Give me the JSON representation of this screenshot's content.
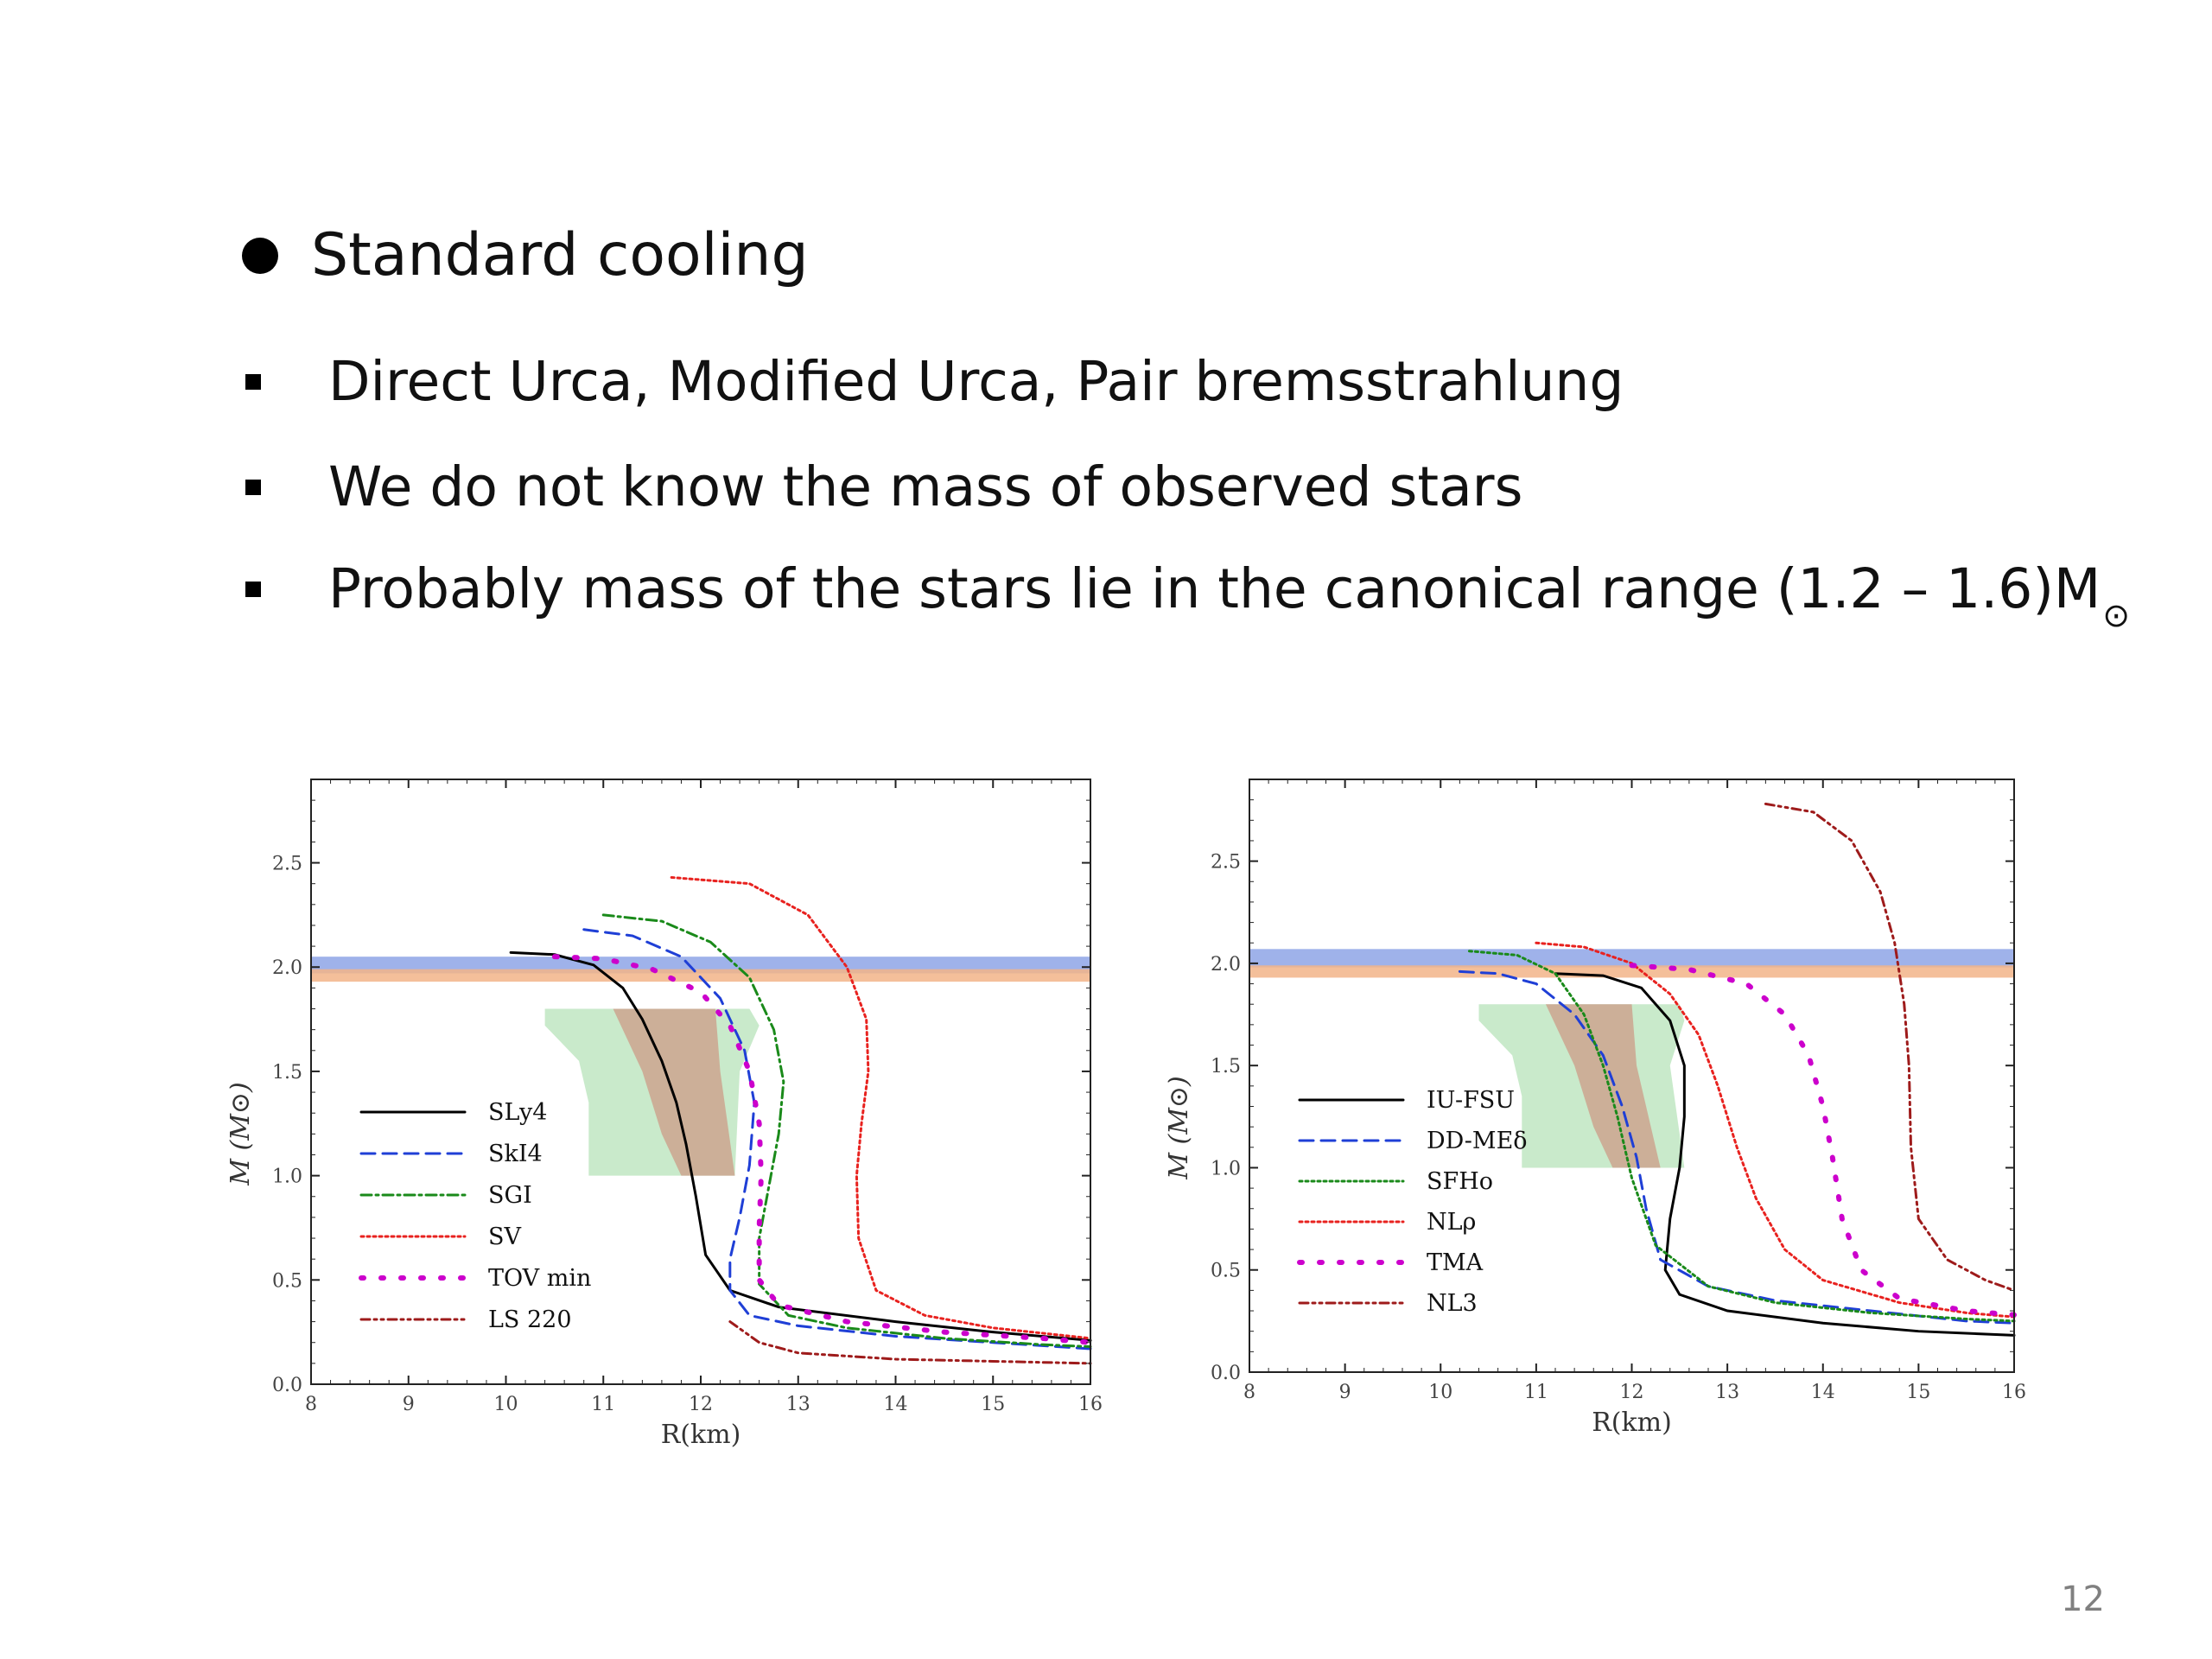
{
  "slide": {
    "heading": "Standard cooling",
    "bullets": [
      "Direct Urca, Modified Urca, Pair bremsstrahlung",
      "We do not know the mass of observed stars",
      "Probably mass of the stars lie in the canonical range (1.2 – 1.6)M"
    ],
    "sun_symbol": "⊙",
    "page_number": "12"
  },
  "colors": {
    "band_blue": "#8ea4e6",
    "band_orange": "#f2b488",
    "region_green": "#bfe6c2",
    "region_brown": "#cda48f"
  },
  "chart_data": [
    {
      "type": "line",
      "xlabel": "R(km)",
      "ylabel": "M (M⊙)",
      "xlim": [
        8,
        16
      ],
      "ylim": [
        0,
        2.9
      ],
      "xticks": [
        8,
        9,
        10,
        11,
        12,
        13,
        14,
        15,
        16
      ],
      "yticks": [
        0.0,
        0.5,
        1.0,
        1.5,
        2.0,
        2.5
      ],
      "xtick_labels": [
        "8",
        "9",
        "10",
        "11",
        "12",
        "13",
        "14",
        "15",
        "16"
      ],
      "ytick_labels": [
        "0.0",
        "0.5",
        "1.0",
        "1.5",
        "2.0",
        "2.5"
      ],
      "legend_position": "left",
      "bands": [
        {
          "y": [
            1.97,
            2.05
          ],
          "color": "blue"
        },
        {
          "y": [
            1.93,
            1.99
          ],
          "color": "orange"
        }
      ],
      "regions": [
        {
          "color": "green",
          "points": [
            [
              10.4,
              1.8
            ],
            [
              11.0,
              1.8
            ],
            [
              11.5,
              1.8
            ],
            [
              12.5,
              1.8
            ],
            [
              12.6,
              1.72
            ],
            [
              12.4,
              1.5
            ],
            [
              12.35,
              1.0
            ],
            [
              10.85,
              1.0
            ],
            [
              10.85,
              1.35
            ],
            [
              10.75,
              1.55
            ],
            [
              10.4,
              1.72
            ]
          ]
        },
        {
          "color": "brown",
          "points": [
            [
              11.1,
              1.8
            ],
            [
              12.15,
              1.8
            ],
            [
              12.2,
              1.5
            ],
            [
              12.35,
              1.0
            ],
            [
              11.8,
              1.0
            ],
            [
              11.6,
              1.2
            ],
            [
              11.4,
              1.5
            ]
          ]
        }
      ],
      "series": [
        {
          "name": "SLy4",
          "style": "solid",
          "color": "#000000",
          "x": [
            10.05,
            10.5,
            10.9,
            11.2,
            11.4,
            11.6,
            11.75,
            11.85,
            11.95,
            12.05,
            12.3,
            12.8,
            14.0,
            15.0,
            16.0
          ],
          "y": [
            2.07,
            2.06,
            2.01,
            1.9,
            1.75,
            1.55,
            1.35,
            1.15,
            0.9,
            0.62,
            0.45,
            0.37,
            0.3,
            0.25,
            0.21
          ]
        },
        {
          "name": "SkI4",
          "style": "dashed",
          "color": "#1f3fd6",
          "x": [
            10.8,
            11.3,
            11.8,
            12.2,
            12.45,
            12.55,
            12.5,
            12.4,
            12.3,
            12.3,
            12.5,
            13.0,
            14.0,
            15.0,
            16.0
          ],
          "y": [
            2.18,
            2.15,
            2.05,
            1.85,
            1.6,
            1.35,
            1.05,
            0.8,
            0.6,
            0.45,
            0.33,
            0.28,
            0.23,
            0.2,
            0.17
          ]
        },
        {
          "name": "SGI",
          "style": "dashdot",
          "color": "#1a8a1a",
          "x": [
            11.0,
            11.6,
            12.1,
            12.5,
            12.75,
            12.85,
            12.8,
            12.7,
            12.6,
            12.6,
            12.9,
            13.5,
            14.5,
            15.5,
            16.0
          ],
          "y": [
            2.25,
            2.22,
            2.12,
            1.95,
            1.7,
            1.45,
            1.2,
            0.95,
            0.7,
            0.48,
            0.33,
            0.27,
            0.22,
            0.19,
            0.18
          ]
        },
        {
          "name": "SV",
          "style": "dotted",
          "color": "#e8221f",
          "x": [
            11.7,
            12.5,
            13.1,
            13.5,
            13.7,
            13.72,
            13.65,
            13.6,
            13.62,
            13.8,
            14.3,
            15.0,
            16.0
          ],
          "y": [
            2.43,
            2.4,
            2.25,
            2.0,
            1.75,
            1.5,
            1.25,
            1.0,
            0.7,
            0.45,
            0.33,
            0.27,
            0.22
          ]
        },
        {
          "name": "TOV min",
          "style": "sparse-dotted",
          "color": "#cc00cc",
          "x": [
            10.5,
            11.0,
            11.5,
            12.0,
            12.3,
            12.5,
            12.6,
            12.62,
            12.6,
            12.6,
            12.8,
            13.5,
            14.5,
            15.5,
            16.0
          ],
          "y": [
            2.05,
            2.04,
            1.99,
            1.88,
            1.72,
            1.5,
            1.25,
            1.0,
            0.75,
            0.5,
            0.38,
            0.3,
            0.25,
            0.22,
            0.2
          ]
        },
        {
          "name": "LS 220",
          "style": "dash-dot-dot",
          "color": "#9e1b1b",
          "x": [
            12.3,
            12.6,
            13.0,
            14.0,
            15.0,
            16.0
          ],
          "y": [
            0.3,
            0.2,
            0.15,
            0.12,
            0.11,
            0.1
          ]
        }
      ]
    },
    {
      "type": "line",
      "xlabel": "R(km)",
      "ylabel": "M (M⊙)",
      "xlim": [
        8,
        16
      ],
      "ylim": [
        0,
        2.9
      ],
      "xticks": [
        8,
        9,
        10,
        11,
        12,
        13,
        14,
        15,
        16
      ],
      "yticks": [
        0.0,
        0.5,
        1.0,
        1.5,
        2.0,
        2.5
      ],
      "xtick_labels": [
        "8",
        "9",
        "10",
        "11",
        "12",
        "13",
        "14",
        "15",
        "16"
      ],
      "ytick_labels": [
        "0.0",
        "0.5",
        "1.0",
        "1.5",
        "2.0",
        "2.5"
      ],
      "legend_position": "left",
      "bands": [
        {
          "y": [
            1.98,
            2.07
          ],
          "color": "blue"
        },
        {
          "y": [
            1.93,
            1.99
          ],
          "color": "orange"
        }
      ],
      "regions": [
        {
          "color": "green",
          "points": [
            [
              10.4,
              1.8
            ],
            [
              11.0,
              1.8
            ],
            [
              11.5,
              1.8
            ],
            [
              12.5,
              1.8
            ],
            [
              12.55,
              1.72
            ],
            [
              12.4,
              1.5
            ],
            [
              12.55,
              1.0
            ],
            [
              10.85,
              1.0
            ],
            [
              10.85,
              1.35
            ],
            [
              10.75,
              1.55
            ],
            [
              10.4,
              1.72
            ]
          ]
        },
        {
          "color": "brown",
          "points": [
            [
              11.1,
              1.8
            ],
            [
              12.0,
              1.8
            ],
            [
              12.05,
              1.5
            ],
            [
              12.3,
              1.0
            ],
            [
              11.8,
              1.0
            ],
            [
              11.6,
              1.2
            ],
            [
              11.4,
              1.5
            ]
          ]
        }
      ],
      "series": [
        {
          "name": "IU-FSU",
          "style": "solid",
          "color": "#000000",
          "x": [
            11.2,
            11.7,
            12.1,
            12.4,
            12.55,
            12.55,
            12.5,
            12.4,
            12.35,
            12.5,
            13.0,
            14.0,
            15.0,
            16.0
          ],
          "y": [
            1.95,
            1.94,
            1.88,
            1.72,
            1.5,
            1.25,
            1.0,
            0.75,
            0.5,
            0.38,
            0.3,
            0.24,
            0.2,
            0.18
          ]
        },
        {
          "name": "DD-MEδ",
          "style": "dashed",
          "color": "#1f3fd6",
          "x": [
            10.2,
            10.6,
            11.0,
            11.4,
            11.7,
            11.9,
            12.05,
            12.15,
            12.3,
            12.8,
            13.5,
            14.5,
            15.5,
            16.0
          ],
          "y": [
            1.96,
            1.95,
            1.9,
            1.75,
            1.55,
            1.3,
            1.05,
            0.8,
            0.55,
            0.42,
            0.35,
            0.3,
            0.25,
            0.24
          ]
        },
        {
          "name": "SFHo",
          "style": "dotted",
          "color": "#1a8a1a",
          "x": [
            10.3,
            10.8,
            11.2,
            11.5,
            11.7,
            11.85,
            12.0,
            12.25,
            12.8,
            13.5,
            14.5,
            15.5,
            16.0
          ],
          "y": [
            2.06,
            2.04,
            1.95,
            1.75,
            1.5,
            1.25,
            0.95,
            0.62,
            0.42,
            0.34,
            0.29,
            0.26,
            0.25
          ]
        },
        {
          "name": "NLρ",
          "style": "dotted",
          "color": "#e8221f",
          "x": [
            11.0,
            11.5,
            12.0,
            12.4,
            12.7,
            12.9,
            13.1,
            13.3,
            13.6,
            14.0,
            14.8,
            15.5,
            16.0
          ],
          "y": [
            2.1,
            2.08,
            2.0,
            1.85,
            1.65,
            1.4,
            1.1,
            0.85,
            0.6,
            0.45,
            0.34,
            0.29,
            0.27
          ]
        },
        {
          "name": "TMA",
          "style": "sparse-dotted",
          "color": "#cc00cc",
          "x": [
            12.0,
            12.6,
            13.2,
            13.6,
            13.85,
            14.0,
            14.1,
            14.2,
            14.4,
            14.8,
            15.5,
            16.0
          ],
          "y": [
            1.99,
            1.97,
            1.9,
            1.75,
            1.55,
            1.3,
            1.05,
            0.75,
            0.5,
            0.36,
            0.3,
            0.28
          ]
        },
        {
          "name": "NL3",
          "style": "dash-dot-dot",
          "color": "#9e1b1b",
          "x": [
            13.4,
            13.9,
            14.3,
            14.6,
            14.75,
            14.85,
            14.9,
            14.92,
            15.0,
            15.3,
            15.7,
            16.0
          ],
          "y": [
            2.78,
            2.74,
            2.6,
            2.35,
            2.1,
            1.8,
            1.5,
            1.1,
            0.75,
            0.55,
            0.45,
            0.4
          ]
        }
      ]
    }
  ]
}
